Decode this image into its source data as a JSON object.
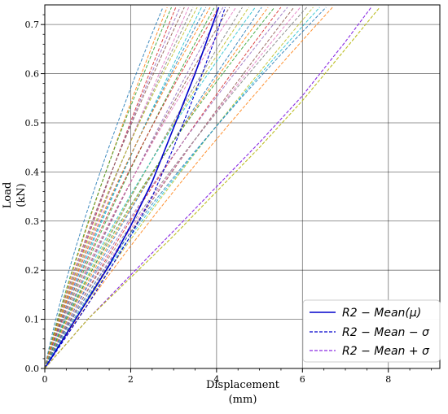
{
  "chart_data": {
    "type": "line",
    "title": "",
    "xlabel": "Displacement",
    "xlabel_unit": "(mm)",
    "ylabel": "Load",
    "ylabel_unit": "(kN)",
    "xlim": [
      0,
      9.2
    ],
    "ylim": [
      0,
      0.74
    ],
    "x_ticks": [
      0,
      2,
      4,
      6,
      8
    ],
    "y_ticks": [
      0.0,
      0.1,
      0.2,
      0.3,
      0.4,
      0.5,
      0.6,
      0.7
    ],
    "x_tick_labels": [
      "0",
      "2",
      "4",
      "6",
      "8"
    ],
    "y_tick_labels": [
      "0.0",
      "0.1",
      "0.2",
      "0.3",
      "0.4",
      "0.5",
      "0.6",
      "0.7"
    ],
    "grid": true,
    "legend_position": "bottom-right",
    "max_load": 0.735,
    "sample_curves_note": "",
    "sample_end_displacements": [
      2.75,
      2.85,
      2.95,
      3.05,
      3.15,
      3.25,
      3.35,
      3.45,
      3.55,
      3.65,
      3.75,
      3.85,
      3.95,
      4.05,
      4.15,
      4.3,
      4.45,
      4.6,
      4.75,
      4.9,
      5.05,
      5.2,
      5.35,
      5.5,
      5.65,
      5.8,
      5.95,
      6.1,
      6.25,
      6.4,
      6.55,
      6.7
    ],
    "sample_colors": [
      "#1f77b4",
      "#ff7f0e",
      "#2ca02c",
      "#d62728",
      "#9467bd",
      "#8c564b",
      "#e377c2",
      "#7f7f7f",
      "#bcbd22",
      "#17becf"
    ],
    "series": [
      {
        "name": "R2 − Mean(μ)",
        "style": "solid",
        "color": "#0000cc",
        "x": [
          0,
          0.5,
          1.0,
          1.5,
          2.0,
          2.5,
          3.0,
          3.5,
          4.05
        ],
        "y": [
          0,
          0.07,
          0.14,
          0.21,
          0.29,
          0.38,
          0.49,
          0.6,
          0.735
        ]
      },
      {
        "name": "R2 − Mean − σ",
        "style": "dashed",
        "color": "#0000cc",
        "x": [
          0,
          0.5,
          1.0,
          1.5,
          2.0,
          2.5,
          3.0,
          3.5,
          4.0,
          4.2
        ],
        "y": [
          0,
          0.065,
          0.13,
          0.2,
          0.27,
          0.35,
          0.45,
          0.56,
          0.68,
          0.735
        ]
      },
      {
        "name": "R2 − Mean + σ",
        "style": "dashed",
        "color": "#8a2be2",
        "x": [
          0,
          1.0,
          2.0,
          3.0,
          4.0,
          5.0,
          6.0,
          7.0,
          7.6
        ],
        "y": [
          0,
          0.1,
          0.19,
          0.28,
          0.37,
          0.46,
          0.555,
          0.665,
          0.735
        ]
      },
      {
        "name": "",
        "style": "dashed",
        "color": "#bcbd22",
        "x": [
          0,
          1.0,
          2.0,
          3.0,
          4.0,
          5.0,
          6.0,
          7.0,
          7.8
        ],
        "y": [
          0,
          0.1,
          0.185,
          0.27,
          0.36,
          0.45,
          0.545,
          0.65,
          0.735
        ]
      }
    ]
  },
  "legend": {
    "items": [
      {
        "label": "R2 − Mean(μ)",
        "style": "solid",
        "color": "#0000cc"
      },
      {
        "label": "R2 − Mean − σ",
        "style": "dashed",
        "color": "#0000cc"
      },
      {
        "label": "R2 − Mean + σ",
        "style": "dashed",
        "color": "#8a2be2"
      }
    ]
  }
}
